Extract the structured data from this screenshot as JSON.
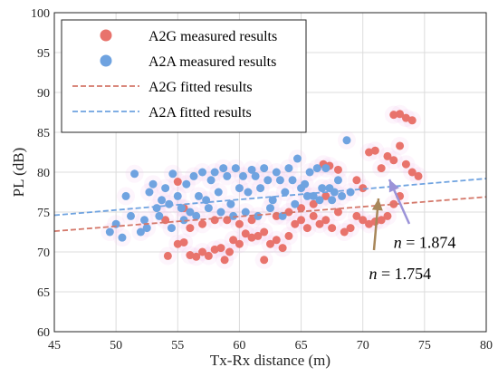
{
  "chart_data": {
    "type": "scatter",
    "xlabel": "Tx-Rx distance (m)",
    "ylabel": "PL (dB)",
    "xlim": [
      45,
      80
    ],
    "ylim": [
      60,
      100
    ],
    "xticks": [
      45,
      50,
      55,
      60,
      65,
      70,
      75,
      80
    ],
    "yticks": [
      60,
      65,
      70,
      75,
      80,
      85,
      90,
      95,
      100
    ],
    "grid": true,
    "legend_position": "top-left",
    "series": [
      {
        "name": "A2G measured results",
        "kind": "scatter",
        "color": "#e8736c",
        "points": [
          [
            54.2,
            69.5
          ],
          [
            55.0,
            71.0
          ],
          [
            55.5,
            71.2
          ],
          [
            56.0,
            69.6
          ],
          [
            56.5,
            69.4
          ],
          [
            57.0,
            70.0
          ],
          [
            57.5,
            69.5
          ],
          [
            58.0,
            70.3
          ],
          [
            58.5,
            70.5
          ],
          [
            58.8,
            69.0
          ],
          [
            59.2,
            70.0
          ],
          [
            59.5,
            71.5
          ],
          [
            60.0,
            71.0
          ],
          [
            60.5,
            72.3
          ],
          [
            61.0,
            71.8
          ],
          [
            61.5,
            72.0
          ],
          [
            62.0,
            69.0
          ],
          [
            62.5,
            71.0
          ],
          [
            63.0,
            71.5
          ],
          [
            63.5,
            70.5
          ],
          [
            64.0,
            72.0
          ],
          [
            64.5,
            73.5
          ],
          [
            65.0,
            74.0
          ],
          [
            65.5,
            73.0
          ],
          [
            66.0,
            74.5
          ],
          [
            66.5,
            73.5
          ],
          [
            67.0,
            74.0
          ],
          [
            67.5,
            73.0
          ],
          [
            68.0,
            75.0
          ],
          [
            68.5,
            72.5
          ],
          [
            69.0,
            73.0
          ],
          [
            69.5,
            74.5
          ],
          [
            70.0,
            74.0
          ],
          [
            70.5,
            73.5
          ],
          [
            71.0,
            73.8
          ],
          [
            71.5,
            74.0
          ],
          [
            72.0,
            74.5
          ],
          [
            72.5,
            76.0
          ],
          [
            73.0,
            77.0
          ],
          [
            54.0,
            74.0
          ],
          [
            55.0,
            78.8
          ],
          [
            55.5,
            75.5
          ],
          [
            56.0,
            73.0
          ],
          [
            57.0,
            73.5
          ],
          [
            58.0,
            74.0
          ],
          [
            59.0,
            74.0
          ],
          [
            60.0,
            73.5
          ],
          [
            61.0,
            74.0
          ],
          [
            62.0,
            72.5
          ],
          [
            63.0,
            74.5
          ],
          [
            64.0,
            75.0
          ],
          [
            65.0,
            75.5
          ],
          [
            66.0,
            76.0
          ],
          [
            67.0,
            77.0
          ],
          [
            70.5,
            82.5
          ],
          [
            71.0,
            82.7
          ],
          [
            71.5,
            80.5
          ],
          [
            72.0,
            82.0
          ],
          [
            72.5,
            81.5
          ],
          [
            73.0,
            83.3
          ],
          [
            73.5,
            81.0
          ],
          [
            74.0,
            80.0
          ],
          [
            74.5,
            79.5
          ],
          [
            72.5,
            87.2
          ],
          [
            73.0,
            87.3
          ],
          [
            73.5,
            86.8
          ],
          [
            74.0,
            86.5
          ],
          [
            66.8,
            81.0
          ],
          [
            67.3,
            80.8
          ],
          [
            68.0,
            80.3
          ],
          [
            69.5,
            79.0
          ],
          [
            70.0,
            78.0
          ]
        ]
      },
      {
        "name": "A2A measured results",
        "kind": "scatter",
        "color": "#6fa3e0",
        "points": [
          [
            49.5,
            72.5
          ],
          [
            50.0,
            73.5
          ],
          [
            50.5,
            71.8
          ],
          [
            50.8,
            77.0
          ],
          [
            51.2,
            74.5
          ],
          [
            51.5,
            79.8
          ],
          [
            52.0,
            72.5
          ],
          [
            52.3,
            74.0
          ],
          [
            52.7,
            77.5
          ],
          [
            53.0,
            78.5
          ],
          [
            53.3,
            75.5
          ],
          [
            53.7,
            76.5
          ],
          [
            54.0,
            78.0
          ],
          [
            54.3,
            76.0
          ],
          [
            54.6,
            79.8
          ],
          [
            55.0,
            77.0
          ],
          [
            55.3,
            75.5
          ],
          [
            55.7,
            78.5
          ],
          [
            56.0,
            75.0
          ],
          [
            56.3,
            79.5
          ],
          [
            56.7,
            77.0
          ],
          [
            57.0,
            80.0
          ],
          [
            57.3,
            76.5
          ],
          [
            57.7,
            79.0
          ],
          [
            58.0,
            80.0
          ],
          [
            58.3,
            77.5
          ],
          [
            58.7,
            80.5
          ],
          [
            59.0,
            79.5
          ],
          [
            59.3,
            76.0
          ],
          [
            59.7,
            80.5
          ],
          [
            60.0,
            78.0
          ],
          [
            60.3,
            79.5
          ],
          [
            60.7,
            77.5
          ],
          [
            61.0,
            80.3
          ],
          [
            61.3,
            79.5
          ],
          [
            61.7,
            78.0
          ],
          [
            62.0,
            80.5
          ],
          [
            62.3,
            79.0
          ],
          [
            62.7,
            76.5
          ],
          [
            63.0,
            80.0
          ],
          [
            63.3,
            79.0
          ],
          [
            63.7,
            77.5
          ],
          [
            64.0,
            80.5
          ],
          [
            64.3,
            79.0
          ],
          [
            64.7,
            81.7
          ],
          [
            65.0,
            78.0
          ],
          [
            65.3,
            78.5
          ],
          [
            65.7,
            80.0
          ],
          [
            66.0,
            77.0
          ],
          [
            66.3,
            80.5
          ],
          [
            66.7,
            78.0
          ],
          [
            67.0,
            80.5
          ],
          [
            67.3,
            78.0
          ],
          [
            67.7,
            77.5
          ],
          [
            68.0,
            79.0
          ],
          [
            68.3,
            77.0
          ],
          [
            68.7,
            84.0
          ],
          [
            69.0,
            77.5
          ],
          [
            52.5,
            73.0
          ],
          [
            53.5,
            74.5
          ],
          [
            54.5,
            73.0
          ],
          [
            55.5,
            74.0
          ],
          [
            56.5,
            74.5
          ],
          [
            57.5,
            75.5
          ],
          [
            58.5,
            75.0
          ],
          [
            59.5,
            74.5
          ],
          [
            60.5,
            75.0
          ],
          [
            61.5,
            74.5
          ],
          [
            62.5,
            75.5
          ],
          [
            63.5,
            74.5
          ],
          [
            64.5,
            76.0
          ],
          [
            65.5,
            77.0
          ],
          [
            66.5,
            76.5
          ],
          [
            67.5,
            76.5
          ]
        ]
      },
      {
        "name": "A2G fitted results",
        "kind": "line",
        "color": "#d4786a",
        "x": [
          45,
          80
        ],
        "y": [
          72.6,
          76.9
        ]
      },
      {
        "name": "A2A fitted results",
        "kind": "line",
        "color": "#6fa3e0",
        "x": [
          45,
          80
        ],
        "y": [
          74.6,
          79.2
        ]
      }
    ],
    "annotations": [
      {
        "symbol": "n",
        "text": " = 1.874",
        "x": 72.5,
        "y": 70.5
      },
      {
        "symbol": "n",
        "text": " = 1.754",
        "x": 70.5,
        "y": 66.6
      }
    ]
  }
}
